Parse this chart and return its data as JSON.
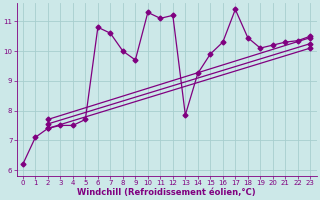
{
  "xlabel": "Windchill (Refroidissement éolien,°C)",
  "background_color": "#cce8e8",
  "line_color": "#800080",
  "grid_color": "#a8cece",
  "xlim": [
    -0.5,
    23.5
  ],
  "ylim": [
    5.8,
    11.6
  ],
  "xticks": [
    0,
    1,
    2,
    3,
    4,
    5,
    6,
    7,
    8,
    9,
    10,
    11,
    12,
    13,
    14,
    15,
    16,
    17,
    18,
    19,
    20,
    21,
    22,
    23
  ],
  "yticks": [
    6,
    7,
    8,
    9,
    10,
    11
  ],
  "series1_x": [
    0,
    1,
    2,
    3,
    4,
    5,
    6,
    7,
    8,
    9,
    10,
    11,
    12,
    13,
    14,
    15,
    16,
    17,
    18,
    19,
    20,
    21,
    22,
    23
  ],
  "series1_y": [
    6.2,
    7.1,
    7.4,
    7.5,
    7.5,
    7.7,
    10.8,
    10.6,
    10.0,
    9.7,
    11.3,
    11.1,
    11.2,
    7.85,
    9.25,
    9.9,
    10.3,
    11.4,
    10.45,
    10.1,
    10.2,
    10.3,
    10.35,
    10.5
  ],
  "trend1_x": [
    2,
    23
  ],
  "trend1_y": [
    7.4,
    10.1
  ],
  "trend2_x": [
    2,
    23
  ],
  "trend2_y": [
    7.55,
    10.25
  ],
  "trend3_x": [
    2,
    23
  ],
  "trend3_y": [
    7.7,
    10.45
  ],
  "marker_size": 3.5,
  "line_width": 0.9,
  "tick_fontsize": 5.0,
  "xlabel_fontsize": 6.0
}
